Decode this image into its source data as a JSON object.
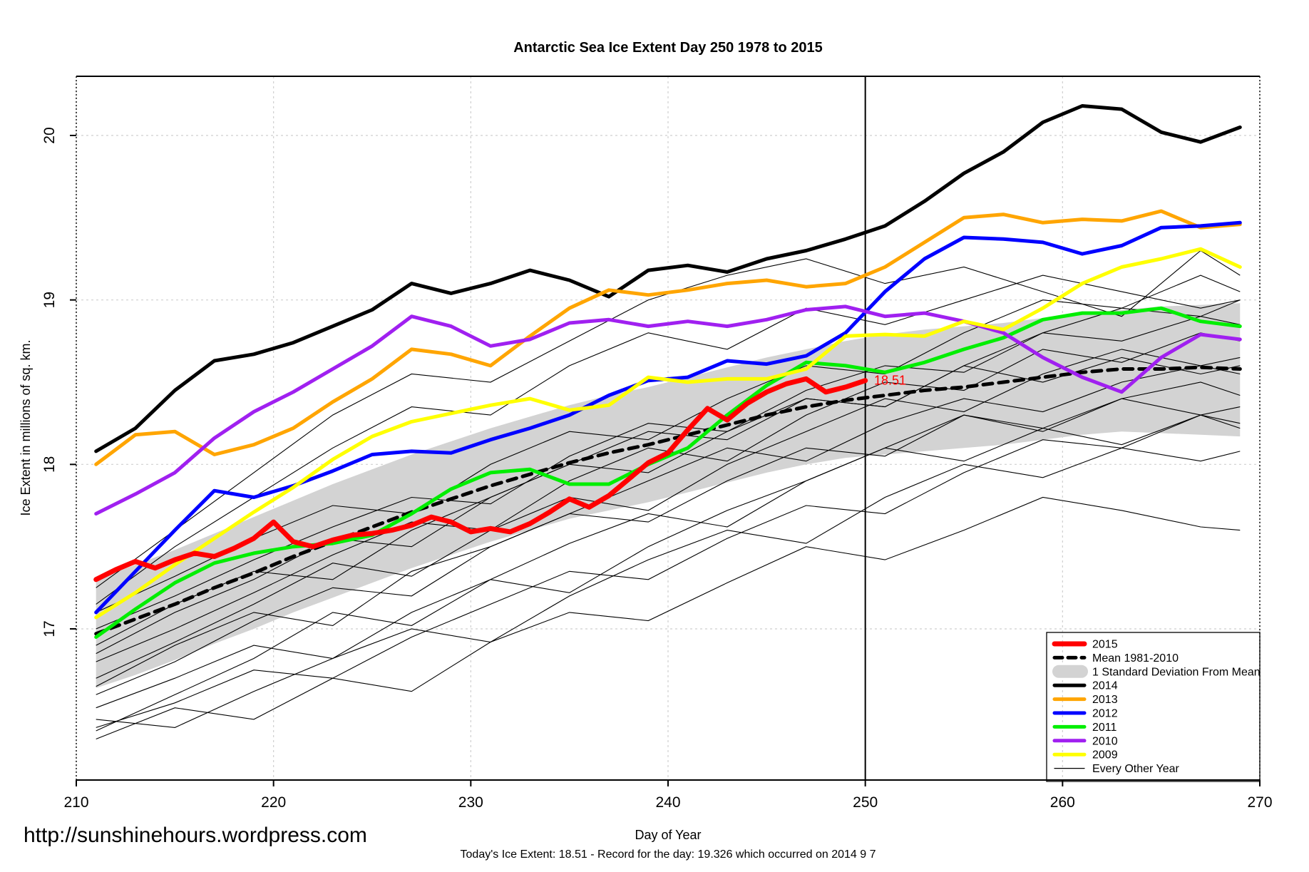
{
  "title": "Antarctic Sea Ice Extent Day 250 1978 to 2015",
  "watermark": "http://sunshinehours.wordpress.com",
  "footnote": "Today's Ice Extent: 18.51  - Record for the day: 19.326 which occurred on 2014 9 7",
  "legend": {
    "items": [
      {
        "label": "2015",
        "swatch": "thick",
        "color": "#FF0000",
        "width": 7
      },
      {
        "label": "Mean 1981-2010",
        "swatch": "dash",
        "color": "#000000",
        "width": 5
      },
      {
        "label": "1 Standard Deviation From Mean",
        "swatch": "band",
        "color": "#D3D3D3"
      },
      {
        "label": "2014",
        "swatch": "thick",
        "color": "#000000",
        "width": 5
      },
      {
        "label": "2013",
        "swatch": "thick",
        "color": "#FFA500",
        "width": 5
      },
      {
        "label": "2012",
        "swatch": "thick",
        "color": "#0000FF",
        "width": 5
      },
      {
        "label": "2011",
        "swatch": "thick",
        "color": "#00EE00",
        "width": 5
      },
      {
        "label": "2010",
        "swatch": "thick",
        "color": "#A020F0",
        "width": 5
      },
      {
        "label": "2009",
        "swatch": "thick",
        "color": "#FFFF00",
        "width": 5
      },
      {
        "label": "Every Other Year",
        "swatch": "thin",
        "color": "#000000",
        "width": 1
      }
    ]
  },
  "chart_data": {
    "type": "line",
    "title": "Antarctic Sea Ice Extent Day 250 1978 to 2015",
    "xlabel": "Day of Year",
    "ylabel": "Ice Extent in millions of sq. km.",
    "x_range": [
      210,
      270
    ],
    "y_range": [
      16.09,
      20.36
    ],
    "x_ticks": [
      210,
      220,
      230,
      240,
      250,
      260,
      270
    ],
    "y_ticks": [
      17,
      18,
      19,
      20
    ],
    "grid": true,
    "legend_position": "bottom-right",
    "marker_day": 250,
    "annotation": {
      "text": "18.51",
      "day": 250.3,
      "value": 18.51,
      "color": "#FF0000"
    },
    "x_grids": {
      "daily": [
        211,
        212,
        213,
        214,
        215,
        216,
        217,
        218,
        219,
        220,
        221,
        222,
        223,
        224,
        225,
        226,
        227,
        228,
        229,
        230,
        231,
        232,
        233,
        234,
        235,
        236,
        237,
        238,
        239,
        240,
        241,
        242,
        243,
        244,
        245,
        246,
        247,
        248,
        249,
        250
      ],
      "main": [
        211,
        213,
        215,
        217,
        219,
        221,
        223,
        225,
        227,
        229,
        231,
        233,
        235,
        237,
        239,
        241,
        243,
        245,
        247,
        249,
        251,
        253,
        255,
        257,
        259,
        261,
        263,
        265,
        267,
        269
      ],
      "background": [
        211,
        215,
        219,
        223,
        227,
        231,
        235,
        239,
        243,
        247,
        251,
        255,
        259,
        263,
        267,
        269
      ]
    },
    "std_band": {
      "label": "1 Standard Deviation From Mean",
      "color": "#D3D3D3",
      "x_grid": "main",
      "upper": [
        17.3,
        17.39,
        17.48,
        17.58,
        17.68,
        17.78,
        17.88,
        17.97,
        18.06,
        18.14,
        18.22,
        18.29,
        18.36,
        18.42,
        18.47,
        18.53,
        18.59,
        18.65,
        18.7,
        18.75,
        18.79,
        18.82,
        18.84,
        18.86,
        18.89,
        18.92,
        18.94,
        18.96,
        18.97,
        18.98
      ],
      "lower": [
        16.64,
        16.72,
        16.81,
        16.91,
        17.0,
        17.1,
        17.19,
        17.28,
        17.37,
        17.45,
        17.53,
        17.6,
        17.67,
        17.72,
        17.77,
        17.83,
        17.89,
        17.95,
        18.0,
        18.04,
        18.06,
        18.08,
        18.1,
        18.12,
        18.15,
        18.18,
        18.2,
        18.19,
        18.18,
        18.17
      ]
    },
    "series": [
      {
        "name": "Mean 1981-2010",
        "color": "#000000",
        "width": 5,
        "dash": "13,9",
        "x_grid": "main",
        "values": [
          16.97,
          17.06,
          17.15,
          17.25,
          17.34,
          17.44,
          17.53,
          17.62,
          17.71,
          17.79,
          17.87,
          17.94,
          18.01,
          18.07,
          18.12,
          18.18,
          18.24,
          18.3,
          18.35,
          18.39,
          18.42,
          18.45,
          18.47,
          18.5,
          18.53,
          18.56,
          18.58,
          18.58,
          18.59,
          18.58
        ]
      },
      {
        "name": "2014",
        "color": "#000000",
        "width": 5,
        "x_grid": "main",
        "values": [
          18.08,
          18.22,
          18.45,
          18.63,
          18.67,
          18.74,
          18.84,
          18.94,
          19.1,
          19.04,
          19.1,
          19.18,
          19.12,
          19.02,
          19.18,
          19.21,
          19.17,
          19.25,
          19.3,
          19.37,
          19.45,
          19.6,
          19.77,
          19.9,
          20.08,
          20.18,
          20.16,
          20.02,
          19.96,
          20.05
        ]
      },
      {
        "name": "2013",
        "color": "#FFA500",
        "width": 5,
        "x_grid": "main",
        "values": [
          18.0,
          18.18,
          18.2,
          18.06,
          18.12,
          18.22,
          18.38,
          18.52,
          18.7,
          18.67,
          18.6,
          18.78,
          18.95,
          19.06,
          19.03,
          19.06,
          19.1,
          19.12,
          19.08,
          19.1,
          19.2,
          19.35,
          19.5,
          19.52,
          19.47,
          19.49,
          19.48,
          19.54,
          19.44,
          19.46
        ]
      },
      {
        "name": "2012",
        "color": "#0000FF",
        "width": 5,
        "x_grid": "main",
        "values": [
          17.1,
          17.35,
          17.6,
          17.84,
          17.8,
          17.87,
          17.96,
          18.06,
          18.08,
          18.07,
          18.15,
          18.22,
          18.3,
          18.42,
          18.51,
          18.53,
          18.63,
          18.61,
          18.66,
          18.8,
          19.05,
          19.25,
          19.38,
          19.37,
          19.35,
          19.28,
          19.33,
          19.44,
          19.45,
          19.47
        ]
      },
      {
        "name": "2011",
        "color": "#00EE00",
        "width": 5,
        "x_grid": "main",
        "values": [
          16.95,
          17.12,
          17.28,
          17.4,
          17.46,
          17.5,
          17.52,
          17.57,
          17.7,
          17.85,
          17.95,
          17.97,
          17.88,
          17.88,
          18.0,
          18.1,
          18.3,
          18.48,
          18.62,
          18.6,
          18.56,
          18.62,
          18.7,
          18.77,
          18.88,
          18.92,
          18.92,
          18.95,
          18.87,
          18.84
        ]
      },
      {
        "name": "2010",
        "color": "#A020F0",
        "width": 5,
        "x_grid": "main",
        "values": [
          17.7,
          17.82,
          17.95,
          18.16,
          18.32,
          18.44,
          18.58,
          18.72,
          18.9,
          18.84,
          18.72,
          18.76,
          18.86,
          18.88,
          18.84,
          18.87,
          18.84,
          18.88,
          18.94,
          18.96,
          18.9,
          18.92,
          18.87,
          18.8,
          18.65,
          18.53,
          18.44,
          18.65,
          18.79,
          18.76
        ]
      },
      {
        "name": "2009",
        "color": "#FFFF00",
        "width": 5,
        "x_grid": "main",
        "values": [
          17.07,
          17.22,
          17.39,
          17.55,
          17.71,
          17.86,
          18.03,
          18.17,
          18.26,
          18.31,
          18.36,
          18.4,
          18.33,
          18.36,
          18.53,
          18.5,
          18.52,
          18.52,
          18.58,
          18.78,
          18.79,
          18.78,
          18.87,
          18.82,
          18.95,
          19.1,
          19.2,
          19.25,
          19.31,
          19.2
        ]
      },
      {
        "name": "2015",
        "color": "#FF0000",
        "width": 7,
        "x_grid": "daily",
        "values": [
          17.3,
          17.36,
          17.41,
          17.37,
          17.42,
          17.46,
          17.44,
          17.49,
          17.55,
          17.65,
          17.53,
          17.5,
          17.54,
          17.57,
          17.58,
          17.6,
          17.63,
          17.68,
          17.65,
          17.59,
          17.61,
          17.59,
          17.64,
          17.71,
          17.79,
          17.74,
          17.81,
          17.91,
          18.01,
          18.07,
          18.21,
          18.34,
          18.27,
          18.37,
          18.44,
          18.49,
          18.52,
          18.44,
          18.47,
          18.51
        ]
      }
    ],
    "other_years": {
      "label": "Every Other Year",
      "color": "#000000",
      "width": 1,
      "x_grid": "background",
      "lines": [
        [
          16.33,
          16.52,
          16.45,
          16.7,
          16.62,
          16.92,
          17.1,
          17.05,
          17.28,
          17.5,
          17.42,
          17.6,
          17.8,
          17.72,
          17.62,
          17.6
        ],
        [
          16.45,
          16.4,
          16.62,
          16.82,
          17.0,
          16.92,
          17.2,
          17.42,
          17.6,
          17.52,
          17.8,
          18.0,
          17.92,
          18.1,
          18.02,
          18.08
        ],
        [
          16.52,
          16.7,
          16.9,
          16.82,
          17.1,
          17.3,
          17.22,
          17.5,
          17.72,
          17.9,
          18.1,
          18.02,
          18.22,
          18.12,
          18.3,
          18.22
        ],
        [
          16.38,
          16.6,
          16.82,
          17.1,
          17.02,
          17.3,
          17.52,
          17.7,
          17.62,
          17.9,
          18.1,
          18.3,
          18.22,
          18.4,
          18.5,
          18.42
        ],
        [
          16.65,
          16.9,
          17.1,
          17.02,
          17.35,
          17.5,
          17.7,
          17.9,
          18.1,
          18.02,
          18.25,
          18.4,
          18.32,
          18.5,
          18.6,
          18.55
        ],
        [
          16.7,
          16.92,
          17.15,
          17.4,
          17.32,
          17.6,
          17.8,
          17.72,
          18.0,
          18.2,
          18.4,
          18.32,
          18.55,
          18.7,
          18.6,
          18.65
        ],
        [
          16.8,
          17.0,
          17.22,
          17.45,
          17.65,
          17.6,
          17.9,
          18.1,
          18.02,
          18.3,
          18.5,
          18.45,
          18.7,
          18.62,
          18.8,
          18.75
        ],
        [
          16.9,
          17.15,
          17.35,
          17.3,
          17.6,
          17.8,
          18.0,
          17.95,
          18.2,
          18.4,
          18.35,
          18.6,
          18.8,
          18.75,
          18.9,
          18.85
        ],
        [
          17.0,
          17.2,
          17.42,
          17.62,
          17.8,
          17.76,
          18.05,
          18.25,
          18.2,
          18.45,
          18.6,
          18.56,
          18.8,
          18.95,
          18.9,
          19.0
        ],
        [
          17.1,
          17.32,
          17.55,
          17.75,
          17.7,
          18.0,
          18.2,
          18.15,
          18.4,
          18.6,
          18.55,
          18.8,
          19.0,
          18.95,
          19.15,
          19.05
        ],
        [
          17.25,
          17.6,
          17.95,
          18.3,
          18.55,
          18.5,
          18.75,
          19.0,
          19.15,
          19.25,
          19.1,
          19.2,
          19.05,
          18.9,
          19.3,
          19.15
        ],
        [
          16.6,
          16.8,
          17.05,
          17.25,
          17.2,
          17.5,
          17.7,
          17.65,
          17.9,
          18.1,
          18.05,
          18.3,
          18.2,
          18.4,
          18.3,
          18.35
        ],
        [
          16.4,
          16.55,
          16.75,
          16.7,
          16.95,
          17.15,
          17.35,
          17.3,
          17.55,
          17.75,
          17.7,
          17.95,
          18.15,
          18.1,
          18.3,
          18.25
        ],
        [
          16.85,
          17.1,
          17.3,
          17.55,
          17.5,
          17.8,
          18.0,
          18.2,
          18.15,
          18.4,
          18.35,
          18.6,
          18.5,
          18.65,
          18.55,
          18.6
        ],
        [
          17.15,
          17.5,
          17.8,
          18.1,
          18.35,
          18.3,
          18.6,
          18.8,
          18.7,
          18.95,
          18.85,
          19.0,
          19.15,
          19.05,
          18.95,
          19.0
        ]
      ]
    }
  }
}
